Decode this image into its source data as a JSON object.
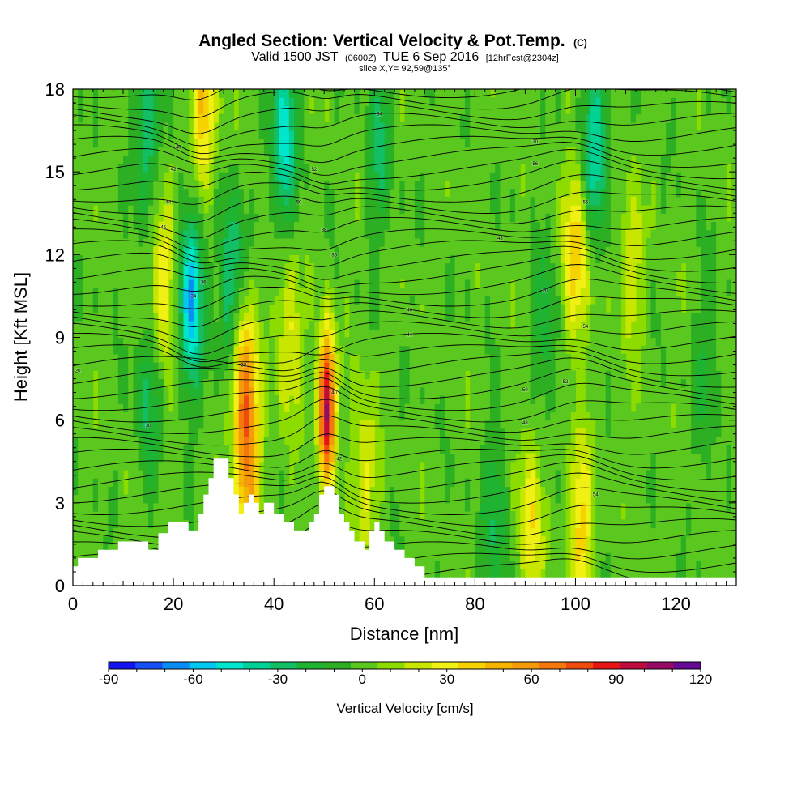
{
  "header": {
    "title": "Angled Section: Vertical Velocity & Pot.Temp.",
    "title_unit": "(C)",
    "valid_prefix": "Valid 1500 JST",
    "utc": "(0600Z)",
    "date": "TUE 6 Sep 2016",
    "forecast": "[12hrFcst@2304z]",
    "slice": "slice X,Y= 92,59@135°"
  },
  "chart_data": {
    "type": "heatmap",
    "xlabel": "Distance [nm]",
    "ylabel": "Height [Kft MSL]",
    "xlim": [
      0,
      132
    ],
    "ylim": [
      0,
      18
    ],
    "x_ticks": [
      "0",
      "20",
      "40",
      "60",
      "80",
      "100",
      "120"
    ],
    "y_ticks": [
      "0",
      "3",
      "6",
      "9",
      "12",
      "15",
      "18"
    ],
    "terrain": {
      "x": [
        0,
        1,
        5,
        9,
        13,
        15,
        17,
        19,
        22,
        23,
        25,
        26,
        27,
        28,
        29,
        30,
        31,
        32,
        33,
        34,
        35,
        36,
        37,
        38,
        40,
        42,
        44,
        46,
        47,
        48,
        49,
        50,
        51,
        52,
        53,
        54,
        55,
        56,
        57,
        58,
        59,
        60,
        61,
        62,
        64,
        66,
        68,
        70,
        71,
        72
      ],
      "height": [
        0.7,
        1.0,
        1.3,
        1.6,
        1.6,
        1.3,
        1.9,
        2.3,
        2.3,
        2.0,
        2.6,
        3.3,
        3.9,
        4.6,
        4.6,
        4.6,
        3.9,
        3.3,
        2.6,
        3.0,
        3.3,
        3.0,
        2.6,
        3.0,
        2.6,
        2.3,
        2.0,
        2.0,
        2.3,
        2.6,
        3.3,
        3.6,
        3.6,
        3.3,
        2.6,
        2.3,
        2.0,
        1.6,
        1.6,
        1.3,
        2.0,
        2.3,
        2.0,
        1.6,
        1.3,
        1.0,
        0.7,
        0.3,
        0.3,
        0.3
      ]
    },
    "updrafts": [
      {
        "x": 50.5,
        "z": 6.5,
        "peak": 115
      },
      {
        "x": 34,
        "z": 7.2,
        "peak": 60
      },
      {
        "x": 26,
        "z": 17.2,
        "peak": 45
      },
      {
        "x": 18,
        "z": 11.2,
        "peak": 40
      },
      {
        "x": 100,
        "z": 11.8,
        "peak": 45
      },
      {
        "x": 101,
        "z": 2.2,
        "peak": 40
      },
      {
        "x": 91,
        "z": 2.5,
        "peak": 35
      },
      {
        "x": 35,
        "z": 4.2,
        "peak": 45
      },
      {
        "x": 43,
        "z": 9.0,
        "peak": 30
      },
      {
        "x": 58,
        "z": 4.0,
        "peak": 30
      },
      {
        "x": 111,
        "z": 11.5,
        "peak": 25
      }
    ],
    "downdrafts": [
      {
        "x": 23.5,
        "z": 10.5,
        "peak": -65
      },
      {
        "x": 42,
        "z": 16.3,
        "peak": -50
      },
      {
        "x": 31.5,
        "z": 11.0,
        "peak": -40
      },
      {
        "x": 104,
        "z": 16.0,
        "peak": -45
      },
      {
        "x": 15,
        "z": 16.5,
        "peak": -35
      },
      {
        "x": 84,
        "z": 2.6,
        "peak": -25
      },
      {
        "x": 61,
        "z": 16.0,
        "peak": -25
      },
      {
        "x": 15,
        "z": 6.8,
        "peak": -25
      },
      {
        "x": 94,
        "z": 9.2,
        "peak": -20
      },
      {
        "x": 126,
        "z": 8.0,
        "peak": -15
      }
    ],
    "isentrope_labels": [
      "20",
      "30",
      "34",
      "36",
      "38",
      "40",
      "42",
      "44",
      "46",
      "48",
      "50",
      "52",
      "54",
      "56"
    ],
    "colorbar": {
      "title": "Vertical Velocity [cm/s]",
      "min": -90,
      "max": 120,
      "step": 10,
      "tick_labels": [
        "-90",
        "-60",
        "-30",
        "0",
        "30",
        "60",
        "90",
        "120"
      ],
      "colors": [
        "#1414f0",
        "#1450f5",
        "#0a8cf5",
        "#00c8f0",
        "#00e6cc",
        "#00d296",
        "#14be64",
        "#1eb432",
        "#2daf23",
        "#5ac81e",
        "#8cdc00",
        "#c8e600",
        "#f0f014",
        "#f5d200",
        "#f5b400",
        "#f59b0a",
        "#f5780f",
        "#f04b0f",
        "#e61414",
        "#be0a3c",
        "#960a64",
        "#640a96"
      ]
    }
  }
}
